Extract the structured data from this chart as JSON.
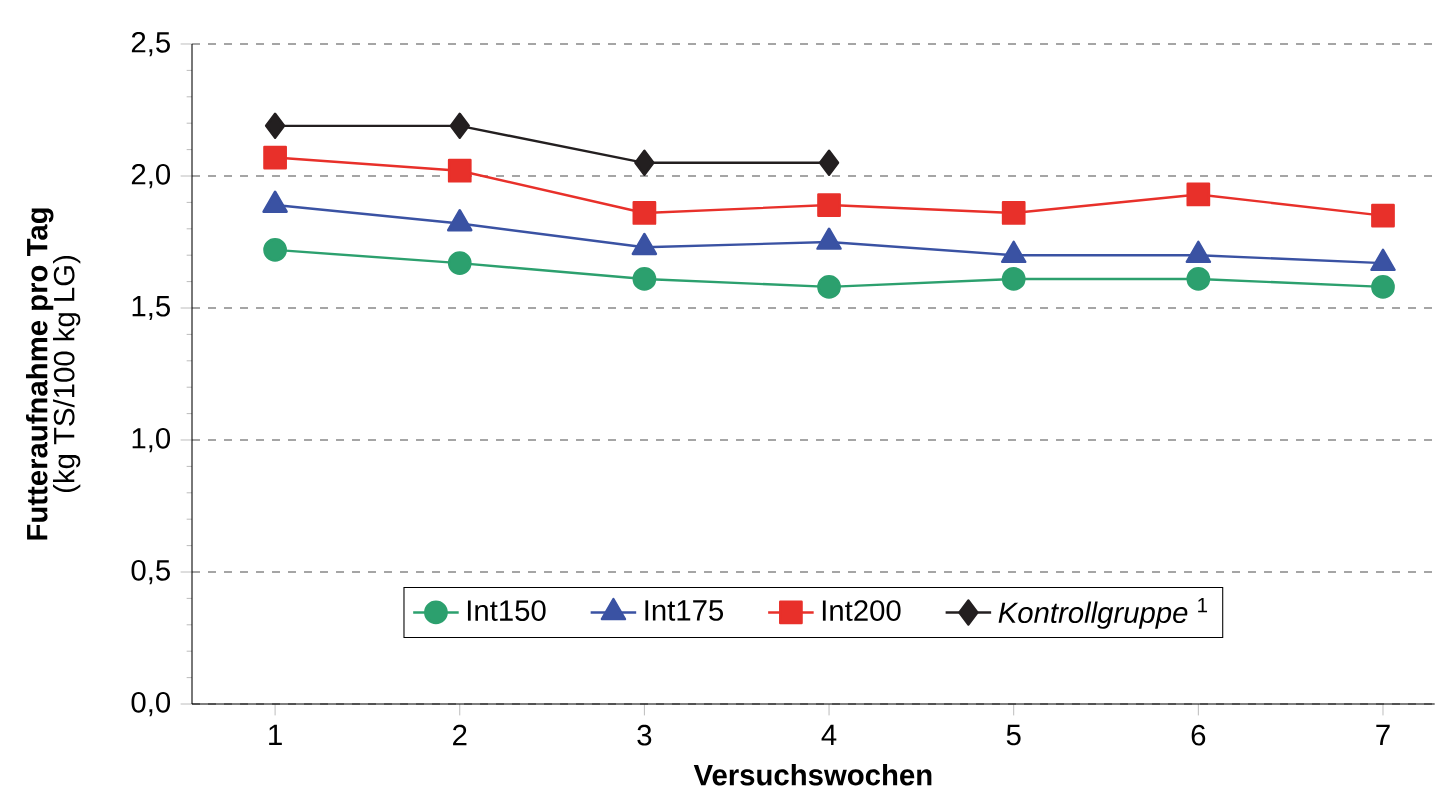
{
  "chart_data": {
    "type": "line",
    "xlabel": "Versuchswochen",
    "ylabel": "Futteraufnahme pro Tag",
    "annotations": [
      "(kg TS/100 kg LG)"
    ],
    "x": [
      1,
      2,
      3,
      4,
      5,
      6,
      7
    ],
    "xlim": [
      0.55,
      7.28
    ],
    "xticks": [
      1,
      2,
      3,
      4,
      5,
      6,
      7
    ],
    "ylim": [
      0,
      2.5
    ],
    "yticks": [
      {
        "value": 0,
        "label": "0,0"
      },
      {
        "value": 0.5,
        "label": "0,5"
      },
      {
        "value": 1,
        "label": "1,0"
      },
      {
        "value": 1.5,
        "label": "1,5"
      },
      {
        "value": 2,
        "label": "2,0"
      },
      {
        "value": 2.5,
        "label": "2,5"
      }
    ],
    "grid": "y",
    "legend": "bottom",
    "line_style": "solid",
    "series": [
      {
        "name": "Int150",
        "color": "#2ca06e",
        "marker": "circle",
        "values": [
          1.72,
          1.67,
          1.61,
          1.58,
          1.61,
          1.61,
          1.58
        ]
      },
      {
        "name": "Int175",
        "color": "#3a52a3",
        "marker": "triangle",
        "values": [
          1.89,
          1.82,
          1.73,
          1.75,
          1.7,
          1.7,
          1.67
        ]
      },
      {
        "name": "Int200",
        "color": "#e8302a",
        "marker": "square",
        "values": [
          2.07,
          2.02,
          1.86,
          1.89,
          1.86,
          1.93,
          1.85
        ]
      },
      {
        "name": "*Kontrollgruppe* $^{1}$",
        "color": "#231f20",
        "marker": "diamond",
        "values": [
          2.19,
          2.19,
          2.05,
          2.05,
          null,
          null,
          null
        ]
      }
    ]
  }
}
